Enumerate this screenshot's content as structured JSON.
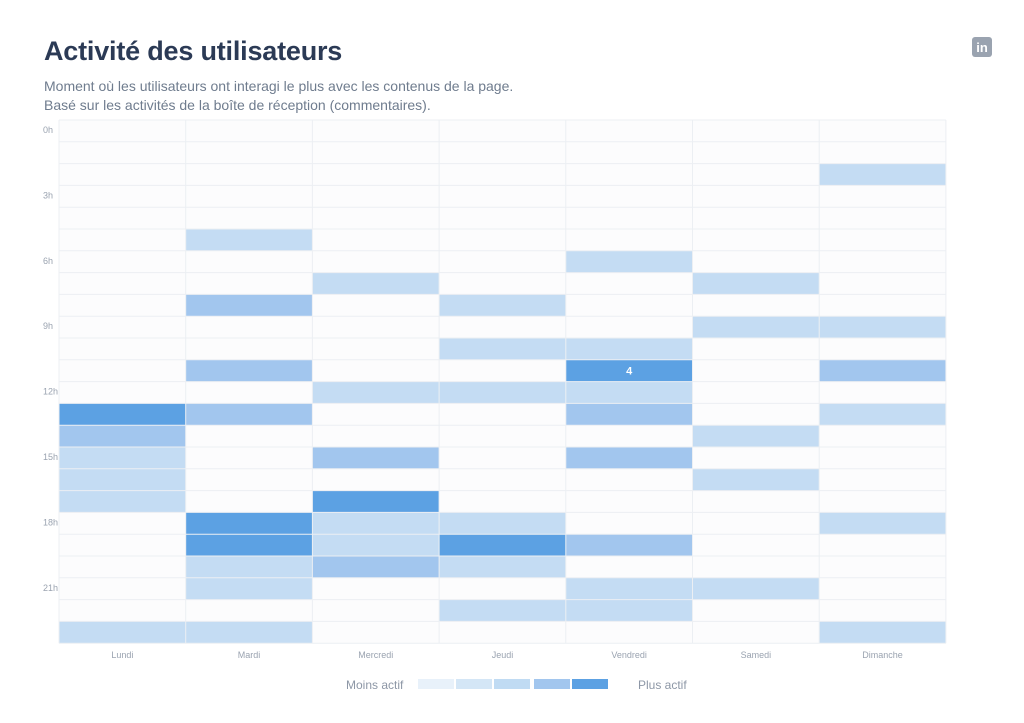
{
  "header": {
    "title": "Activité des utilisateurs",
    "subtitle_line1": "Moment où les utilisateurs ont interagi le plus avec les contenus de la page.",
    "subtitle_line2": "Basé sur les activités de la boîte de réception (commentaires).",
    "brand_icon": "linkedin-icon",
    "brand_text": "in"
  },
  "chart_data": {
    "type": "heatmap",
    "title": "Activité des utilisateurs",
    "days": [
      "Lundi",
      "Mardi",
      "Mercredi",
      "Jeudi",
      "Vendredi",
      "Samedi",
      "Dimanche"
    ],
    "hour_labels": [
      "0h",
      "3h",
      "6h",
      "9h",
      "12h",
      "15h",
      "18h",
      "21h"
    ],
    "hours_per_day": 24,
    "levels": 5,
    "cells": [
      {
        "day": "Lundi",
        "hour": 13,
        "level": 4
      },
      {
        "day": "Lundi",
        "hour": 14,
        "level": 2
      },
      {
        "day": "Lundi",
        "hour": 15,
        "level": 1
      },
      {
        "day": "Lundi",
        "hour": 16,
        "level": 1
      },
      {
        "day": "Lundi",
        "hour": 17,
        "level": 1
      },
      {
        "day": "Lundi",
        "hour": 23,
        "level": 1
      },
      {
        "day": "Mardi",
        "hour": 5,
        "level": 1
      },
      {
        "day": "Mardi",
        "hour": 8,
        "level": 2
      },
      {
        "day": "Mardi",
        "hour": 11,
        "level": 2
      },
      {
        "day": "Mardi",
        "hour": 13,
        "level": 2
      },
      {
        "day": "Mardi",
        "hour": 18,
        "level": 4
      },
      {
        "day": "Mardi",
        "hour": 19,
        "level": 4
      },
      {
        "day": "Mardi",
        "hour": 20,
        "level": 1
      },
      {
        "day": "Mardi",
        "hour": 21,
        "level": 1
      },
      {
        "day": "Mardi",
        "hour": 23,
        "level": 1
      },
      {
        "day": "Mercredi",
        "hour": 7,
        "level": 1
      },
      {
        "day": "Mercredi",
        "hour": 12,
        "level": 1
      },
      {
        "day": "Mercredi",
        "hour": 15,
        "level": 2
      },
      {
        "day": "Mercredi",
        "hour": 17,
        "level": 4
      },
      {
        "day": "Mercredi",
        "hour": 18,
        "level": 1
      },
      {
        "day": "Mercredi",
        "hour": 19,
        "level": 1
      },
      {
        "day": "Mercredi",
        "hour": 20,
        "level": 2
      },
      {
        "day": "Jeudi",
        "hour": 8,
        "level": 1
      },
      {
        "day": "Jeudi",
        "hour": 10,
        "level": 1
      },
      {
        "day": "Jeudi",
        "hour": 12,
        "level": 1
      },
      {
        "day": "Jeudi",
        "hour": 18,
        "level": 1
      },
      {
        "day": "Jeudi",
        "hour": 19,
        "level": 4
      },
      {
        "day": "Jeudi",
        "hour": 20,
        "level": 1
      },
      {
        "day": "Jeudi",
        "hour": 22,
        "level": 1
      },
      {
        "day": "Vendredi",
        "hour": 6,
        "level": 1
      },
      {
        "day": "Vendredi",
        "hour": 10,
        "level": 1
      },
      {
        "day": "Vendredi",
        "hour": 11,
        "level": 4,
        "value": "4"
      },
      {
        "day": "Vendredi",
        "hour": 12,
        "level": 1
      },
      {
        "day": "Vendredi",
        "hour": 13,
        "level": 2
      },
      {
        "day": "Vendredi",
        "hour": 15,
        "level": 2
      },
      {
        "day": "Vendredi",
        "hour": 19,
        "level": 2
      },
      {
        "day": "Vendredi",
        "hour": 21,
        "level": 1
      },
      {
        "day": "Vendredi",
        "hour": 22,
        "level": 1
      },
      {
        "day": "Samedi",
        "hour": 7,
        "level": 1
      },
      {
        "day": "Samedi",
        "hour": 9,
        "level": 1
      },
      {
        "day": "Samedi",
        "hour": 14,
        "level": 1
      },
      {
        "day": "Samedi",
        "hour": 16,
        "level": 1
      },
      {
        "day": "Samedi",
        "hour": 21,
        "level": 1
      },
      {
        "day": "Dimanche",
        "hour": 2,
        "level": 1
      },
      {
        "day": "Dimanche",
        "hour": 9,
        "level": 1
      },
      {
        "day": "Dimanche",
        "hour": 11,
        "level": 2
      },
      {
        "day": "Dimanche",
        "hour": 13,
        "level": 1
      },
      {
        "day": "Dimanche",
        "hour": 18,
        "level": 1
      },
      {
        "day": "Dimanche",
        "hour": 23,
        "level": 1
      }
    ],
    "legend": {
      "min_label": "Moins actif",
      "max_label": "Plus actif"
    },
    "colors": {
      "level0": "#fcfcfd",
      "level1": "#c4dcf3",
      "level2": "#a2c6ee",
      "level3": "#84b6ec",
      "level4": "#5ca1e3",
      "grid": "#eceff3",
      "label": "#9aa3b0",
      "value_text": "#ffffff"
    },
    "legend_colors": [
      "#e8f1fa",
      "#d4e6f6",
      "#c0dbf3",
      "#a2c6ee",
      "#5ca1e3"
    ]
  }
}
